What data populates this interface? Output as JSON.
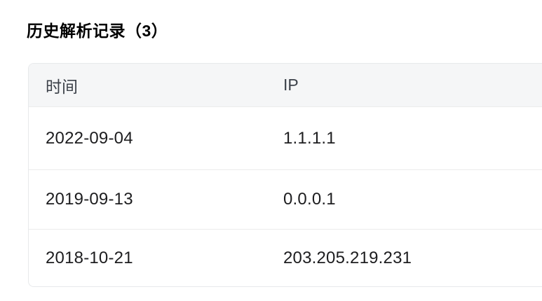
{
  "section": {
    "title": "历史解析记录（3）",
    "record_count": 3
  },
  "table": {
    "columns": [
      {
        "label": "时间"
      },
      {
        "label": "IP"
      }
    ],
    "rows": [
      {
        "time": "2022-09-04",
        "ip": "1.1.1.1"
      },
      {
        "time": "2019-09-13",
        "ip": "0.0.0.1"
      },
      {
        "time": "2018-10-21",
        "ip": "203.205.219.231"
      }
    ]
  },
  "colors": {
    "page_bg": "#ffffff",
    "header_bg": "#f5f6f7",
    "card_border": "#e7e9eb",
    "row_divider": "#ececec",
    "title_text": "#000000",
    "header_text": "#3c4149",
    "cell_text": "#1d1d1f"
  }
}
